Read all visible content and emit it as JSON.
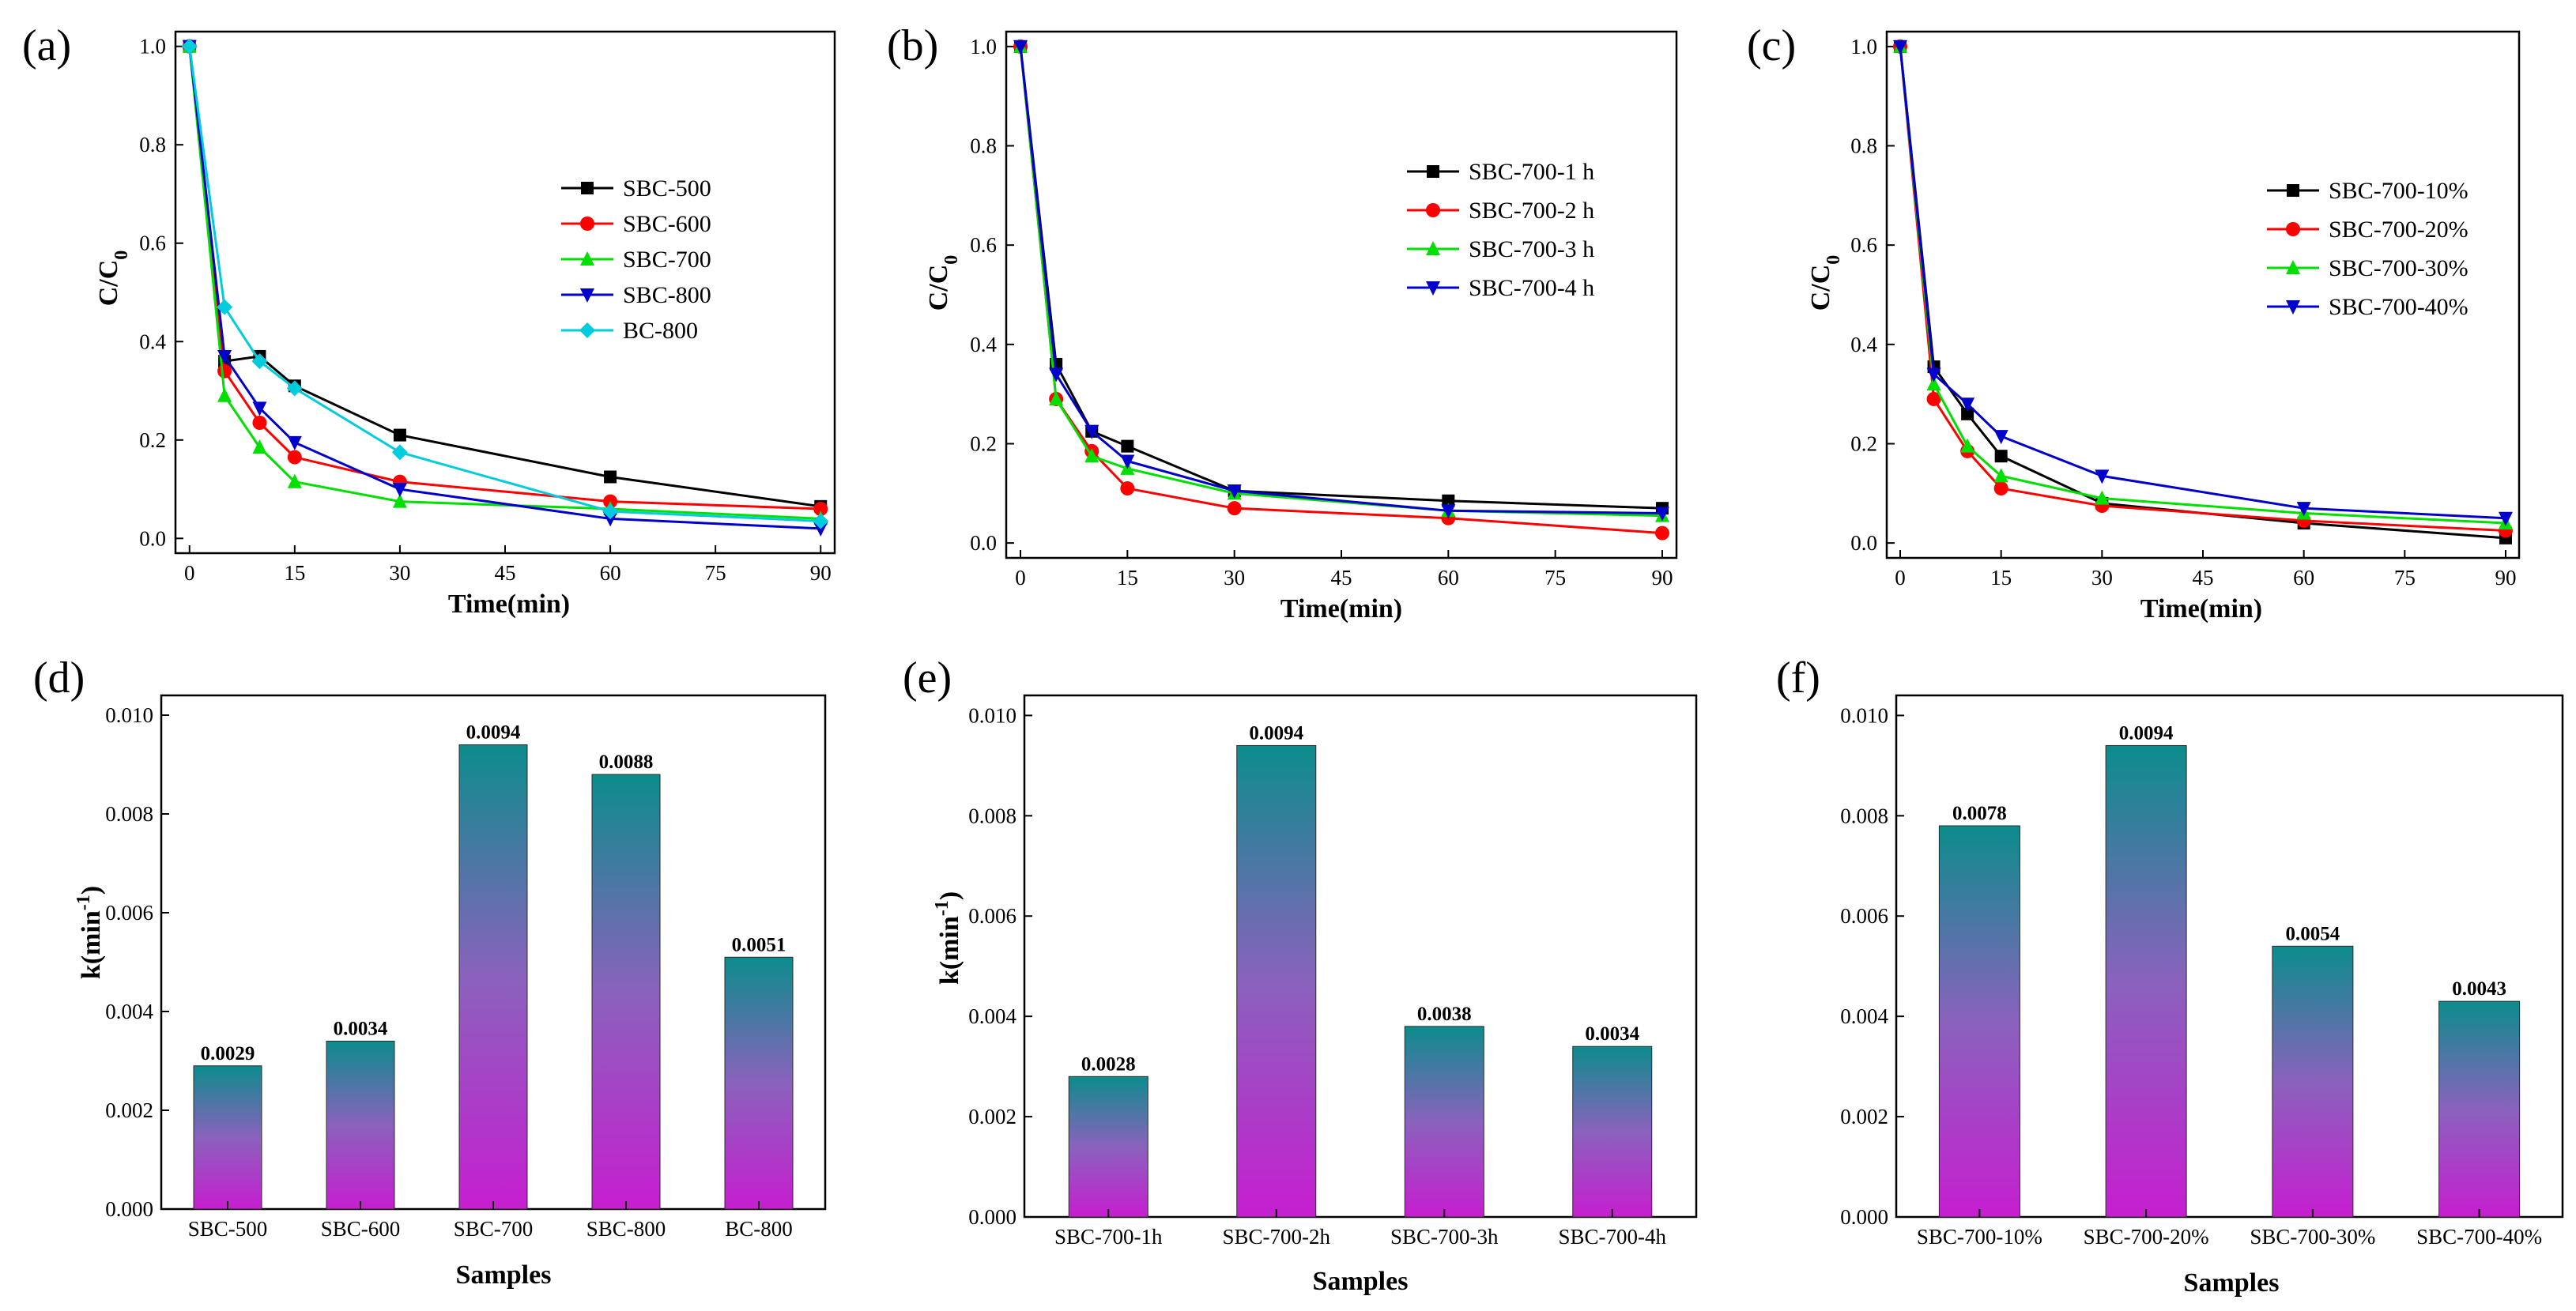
{
  "figure": {
    "panels": [
      {
        "letter": "(a)"
      },
      {
        "letter": "(b)"
      },
      {
        "letter": "(c)"
      },
      {
        "letter": "(d)"
      },
      {
        "letter": "(e)"
      },
      {
        "letter": "(f)"
      }
    ]
  },
  "chart_data": [
    {
      "panel": "(a)",
      "type": "line",
      "xlabel": "Time(min)",
      "ylabel": "C/C0",
      "xlim": [
        -2,
        92
      ],
      "ylim": [
        -0.03,
        1.03
      ],
      "xticks": [
        0,
        15,
        30,
        45,
        60,
        75,
        90
      ],
      "yticks": [
        0.0,
        0.2,
        0.4,
        0.6,
        0.8,
        1.0
      ],
      "x": [
        0,
        5,
        10,
        15,
        30,
        60,
        90
      ],
      "legend_position": "center-right",
      "series": [
        {
          "name": "SBC-500",
          "color": "#000000",
          "marker": "square",
          "values": [
            1.0,
            0.36,
            0.37,
            0.31,
            0.21,
            0.125,
            0.065
          ]
        },
        {
          "name": "SBC-600",
          "color": "#ff0000",
          "marker": "circle",
          "values": [
            1.0,
            0.34,
            0.235,
            0.165,
            0.115,
            0.075,
            0.06
          ]
        },
        {
          "name": "SBC-700",
          "color": "#00e000",
          "marker": "triangle-up",
          "values": [
            1.0,
            0.29,
            0.185,
            0.115,
            0.075,
            0.06,
            0.04
          ]
        },
        {
          "name": "SBC-800",
          "color": "#0000cc",
          "marker": "triangle-down",
          "values": [
            1.0,
            0.37,
            0.265,
            0.195,
            0.1,
            0.04,
            0.02
          ]
        },
        {
          "name": "BC-800",
          "color": "#00ccdd",
          "marker": "diamond",
          "values": [
            1.0,
            0.47,
            0.36,
            0.305,
            0.175,
            0.055,
            0.035
          ]
        }
      ]
    },
    {
      "panel": "(b)",
      "type": "line",
      "xlabel": "Time(min)",
      "ylabel": "C/C0",
      "xlim": [
        -2,
        92
      ],
      "ylim": [
        -0.03,
        1.03
      ],
      "xticks": [
        0,
        15,
        30,
        45,
        60,
        75,
        90
      ],
      "yticks": [
        0.0,
        0.2,
        0.4,
        0.6,
        0.8,
        1.0
      ],
      "x": [
        0,
        5,
        10,
        15,
        30,
        60,
        90
      ],
      "legend_position": "top-right",
      "series": [
        {
          "name": "SBC-700-1 h",
          "color": "#000000",
          "marker": "square",
          "values": [
            1.0,
            0.36,
            0.225,
            0.195,
            0.105,
            0.085,
            0.07
          ]
        },
        {
          "name": "SBC-700-2 h",
          "color": "#ff0000",
          "marker": "circle",
          "values": [
            1.0,
            0.29,
            0.185,
            0.11,
            0.07,
            0.05,
            0.02
          ]
        },
        {
          "name": "SBC-700-3 h",
          "color": "#00e000",
          "marker": "triangle-up",
          "values": [
            1.0,
            0.29,
            0.175,
            0.15,
            0.1,
            0.065,
            0.055
          ]
        },
        {
          "name": "SBC-700-4 h",
          "color": "#0000cc",
          "marker": "triangle-down",
          "values": [
            1.0,
            0.34,
            0.225,
            0.165,
            0.105,
            0.065,
            0.06
          ]
        }
      ]
    },
    {
      "panel": "(c)",
      "type": "line",
      "xlabel": "Time(min)",
      "ylabel": "C/C0",
      "xlim": [
        -2,
        92
      ],
      "ylim": [
        -0.03,
        1.03
      ],
      "xticks": [
        0,
        15,
        30,
        45,
        60,
        75,
        90
      ],
      "yticks": [
        0.0,
        0.2,
        0.4,
        0.6,
        0.8,
        1.0
      ],
      "x": [
        0,
        5,
        10,
        15,
        30,
        60,
        90
      ],
      "legend_position": "top-right",
      "series": [
        {
          "name": "SBC-700-10%",
          "color": "#000000",
          "marker": "square",
          "values": [
            1.0,
            0.355,
            0.26,
            0.175,
            0.08,
            0.04,
            0.01
          ]
        },
        {
          "name": "SBC-700-20%",
          "color": "#ff0000",
          "marker": "circle",
          "values": [
            1.0,
            0.29,
            0.185,
            0.11,
            0.075,
            0.045,
            0.025
          ]
        },
        {
          "name": "SBC-700-30%",
          "color": "#00e000",
          "marker": "triangle-up",
          "values": [
            1.0,
            0.32,
            0.195,
            0.135,
            0.09,
            0.06,
            0.04
          ]
        },
        {
          "name": "SBC-700-40%",
          "color": "#0000cc",
          "marker": "triangle-down",
          "values": [
            1.0,
            0.34,
            0.28,
            0.215,
            0.135,
            0.07,
            0.05
          ]
        }
      ]
    },
    {
      "panel": "(d)",
      "type": "bar",
      "xlabel": "Samples",
      "ylabel": "k(min-1)",
      "ylim": [
        0,
        0.0104
      ],
      "yticks": [
        "0.000",
        "0.002",
        "0.004",
        "0.006",
        "0.008",
        "0.010"
      ],
      "categories": [
        "SBC-500",
        "SBC-600",
        "SBC-700",
        "SBC-800",
        "BC-800"
      ],
      "values": [
        0.0029,
        0.0034,
        0.0094,
        0.0088,
        0.0051
      ],
      "data_labels": [
        "0.0029",
        "0.0034",
        "0.0094",
        "0.0088",
        "0.0051"
      ]
    },
    {
      "panel": "(e)",
      "type": "bar",
      "xlabel": "Samples",
      "ylabel": "k(min-1)",
      "ylim": [
        0,
        0.0104
      ],
      "yticks": [
        "0.000",
        "0.002",
        "0.004",
        "0.006",
        "0.008",
        "0.010"
      ],
      "categories": [
        "SBC-700-1h",
        "SBC-700-2h",
        "SBC-700-3h",
        "SBC-700-4h"
      ],
      "values": [
        0.0028,
        0.0094,
        0.0038,
        0.0034
      ],
      "data_labels": [
        "0.0028",
        "0.0094",
        "0.0038",
        "0.0034"
      ]
    },
    {
      "panel": "(f)",
      "type": "bar",
      "xlabel": "Samples",
      "ylabel": "",
      "ylim": [
        0,
        0.0104
      ],
      "yticks": [
        "0.000",
        "0.002",
        "0.004",
        "0.006",
        "0.008",
        "0.010"
      ],
      "categories": [
        "SBC-700-10%",
        "SBC-700-20%",
        "SBC-700-30%",
        "SBC-700-40%"
      ],
      "values": [
        0.0078,
        0.0094,
        0.0054,
        0.0043
      ],
      "data_labels": [
        "0.0078",
        "0.0094",
        "0.0054",
        "0.0043"
      ]
    }
  ]
}
